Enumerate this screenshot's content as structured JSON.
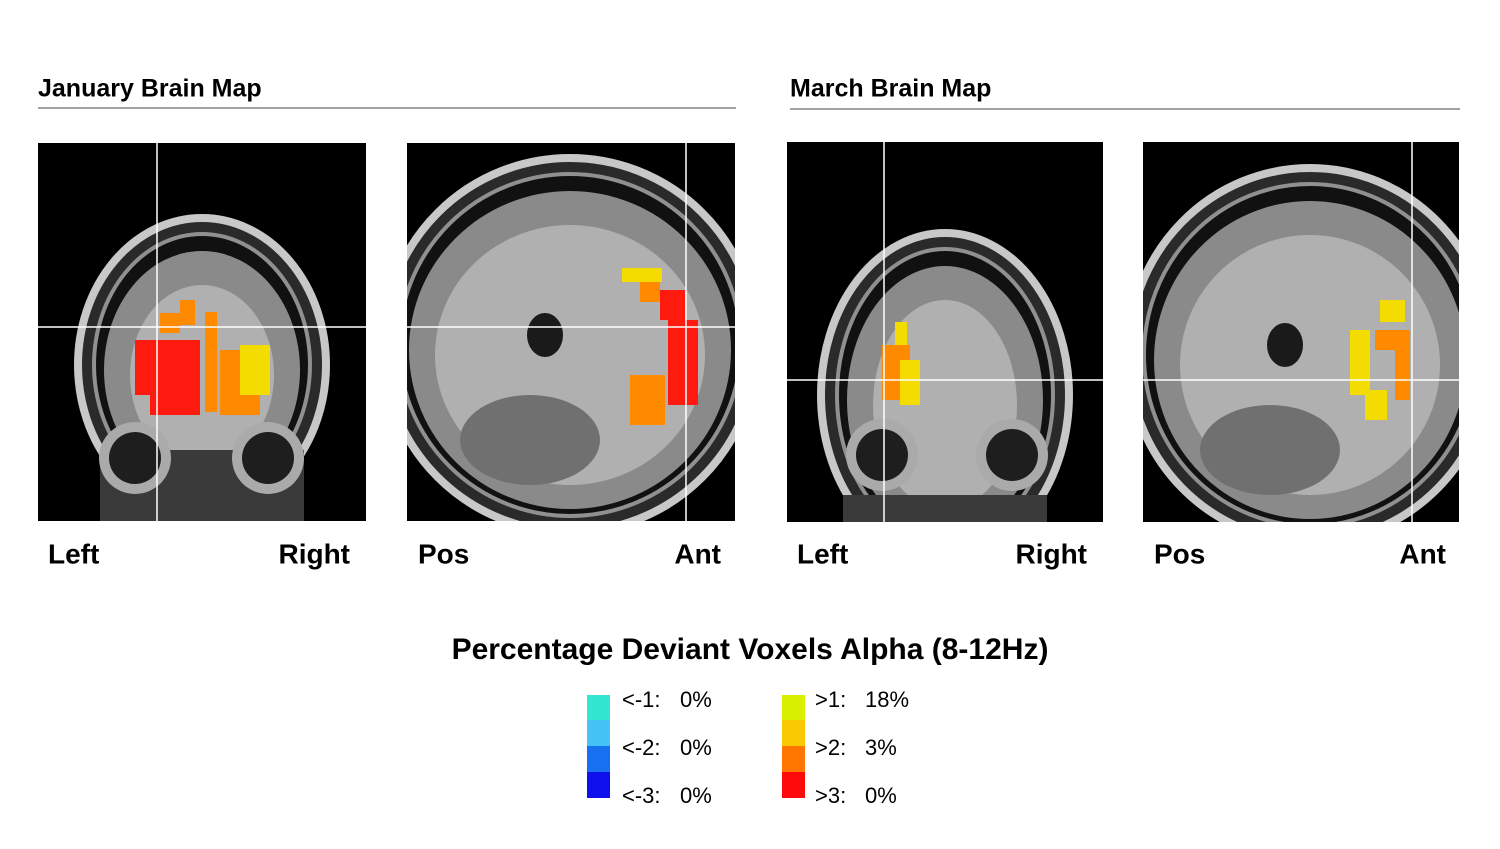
{
  "panels": [
    {
      "title": "January Brain Map",
      "views": [
        {
          "left_label": "Left",
          "right_label": "Right"
        },
        {
          "left_label": "Pos",
          "right_label": "Ant"
        }
      ]
    },
    {
      "title": "March Brain Map",
      "views": [
        {
          "left_label": "Left",
          "right_label": "Right"
        },
        {
          "left_label": "Pos",
          "right_label": "Ant"
        }
      ]
    }
  ],
  "legend": {
    "title": "Percentage Deviant Voxels Alpha (8-12Hz)",
    "negative": [
      {
        "label": "<-1:",
        "value": "0%"
      },
      {
        "label": "<-2:",
        "value": "0%"
      },
      {
        "label": "<-3:",
        "value": "0%"
      }
    ],
    "positive": [
      {
        "label": ">1:",
        "value": "18%"
      },
      {
        "label": ">2:",
        "value": "3%"
      },
      {
        "label": ">3:",
        "value": "0%"
      }
    ]
  }
}
